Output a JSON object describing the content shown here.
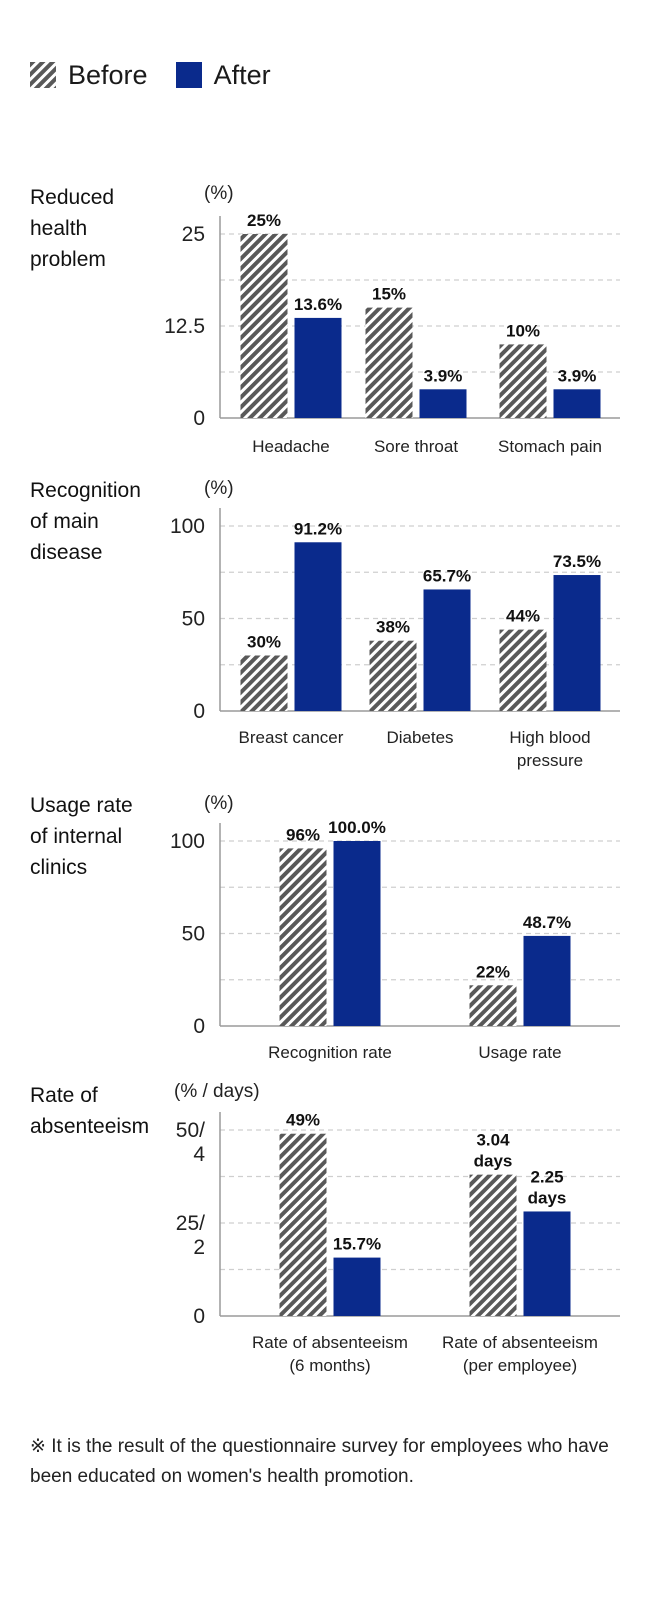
{
  "legend": {
    "items": [
      {
        "label": "Before",
        "style": "hatched",
        "color": "#595959"
      },
      {
        "label": "After",
        "style": "solid",
        "color": "#0a2a8c"
      }
    ]
  },
  "colors": {
    "before": "#595959",
    "after": "#0a2a8c",
    "axis": "#9a9a9a",
    "grid": "#cfcfcf"
  },
  "chart_data": [
    {
      "type": "bar",
      "title": "Reduced\nhealth\nproblem",
      "unit": "(%)",
      "categories": [
        "Headache",
        "Sore throat",
        "Stomach pain"
      ],
      "ylim": [
        0,
        25
      ],
      "yticks": [
        {
          "value": 0,
          "label": "0"
        },
        {
          "value": 12.5,
          "label": "12.5"
        },
        {
          "value": 25,
          "label": "25"
        }
      ],
      "series": [
        {
          "name": "Before",
          "values": [
            25,
            15,
            10
          ],
          "labels": [
            "25%",
            "15%",
            "10%"
          ]
        },
        {
          "name": "After",
          "values": [
            13.6,
            3.9,
            3.9
          ],
          "labels": [
            "13.6%",
            "3.9%",
            "3.9%"
          ]
        }
      ],
      "grid": true
    },
    {
      "type": "bar",
      "title": "Recognition\nof main\ndisease",
      "unit": "(%)",
      "categories": [
        "Breast cancer",
        "Diabetes",
        "High blood\npressure"
      ],
      "ylim": [
        0,
        100
      ],
      "yticks": [
        {
          "value": 0,
          "label": "0"
        },
        {
          "value": 50,
          "label": "50"
        },
        {
          "value": 100,
          "label": "100"
        }
      ],
      "series": [
        {
          "name": "Before",
          "values": [
            30,
            38,
            44
          ],
          "labels": [
            "30%",
            "38%",
            "44%"
          ]
        },
        {
          "name": "After",
          "values": [
            91.2,
            65.7,
            73.5
          ],
          "labels": [
            "91.2%",
            "65.7%",
            "73.5%"
          ]
        }
      ],
      "grid": true
    },
    {
      "type": "bar",
      "title": "Usage rate\nof internal\nclinics",
      "unit": "(%)",
      "categories": [
        "Recognition rate",
        "Usage rate"
      ],
      "ylim": [
        0,
        100
      ],
      "yticks": [
        {
          "value": 0,
          "label": "0"
        },
        {
          "value": 50,
          "label": "50"
        },
        {
          "value": 100,
          "label": "100"
        }
      ],
      "series": [
        {
          "name": "Before",
          "values": [
            96,
            22
          ],
          "labels": [
            "96%",
            "22%"
          ]
        },
        {
          "name": "After",
          "values": [
            100,
            48.7
          ],
          "labels": [
            "100.0%",
            "48.7%"
          ]
        }
      ],
      "grid": true
    },
    {
      "type": "bar",
      "title": "Rate of\nabsenteeism",
      "unit": "(% / days)",
      "categories": [
        "Rate of absenteeism\n(6 months)",
        "Rate of absenteeism\n(per employee)"
      ],
      "ylim": [
        0,
        50
      ],
      "yticks": [
        {
          "value": 0,
          "label": "0"
        },
        {
          "value": 25,
          "label": "25/\n2"
        },
        {
          "value": 50,
          "label": "50/\n4"
        }
      ],
      "series": [
        {
          "name": "Before",
          "values": [
            49,
            38
          ],
          "labels": [
            "49%",
            "3.04\ndays"
          ]
        },
        {
          "name": "After",
          "values": [
            15.7,
            28.1
          ],
          "labels": [
            "15.7%",
            "2.25\ndays"
          ]
        }
      ],
      "grid": true
    }
  ],
  "footnote": "※ It is the result of the questionnaire survey for employees who have been educated on women's health promotion."
}
